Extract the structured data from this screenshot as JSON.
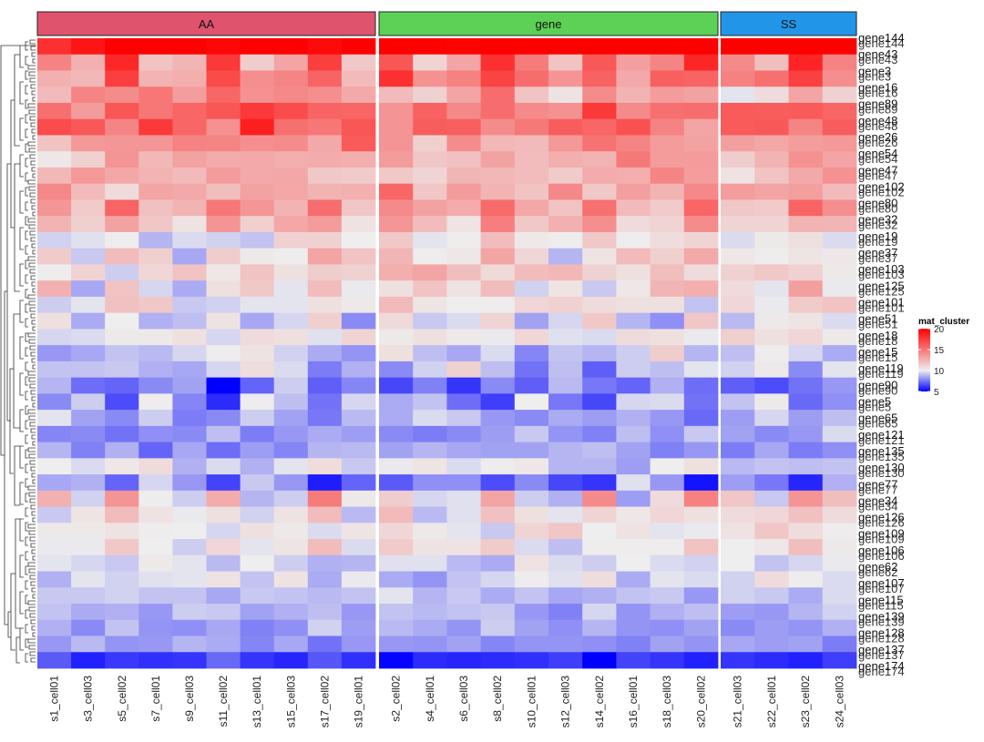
{
  "chart_data": {
    "type": "heatmap",
    "title": "",
    "legend": {
      "title": "mat_cluster",
      "ticks": [
        5,
        10,
        15,
        20
      ],
      "range": [
        5,
        20
      ],
      "placement": "right",
      "colors": {
        "low": "#0000ff",
        "mid": "#eeeeee",
        "high": "#ff0000"
      }
    },
    "row_dendrogram": true,
    "groups": [
      {
        "name": "AA",
        "color": "#e0536d",
        "columns": [
          "s1_cell01",
          "s3_cell03",
          "s5_cell02",
          "s7_cell01",
          "s9_cell03",
          "s11_cell02",
          "s13_cell01",
          "s15_cell03",
          "s17_cell02",
          "s19_cell01"
        ]
      },
      {
        "name": "gene",
        "color": "#5cd155",
        "columns": [
          "s2_cell02",
          "s4_cell01",
          "s6_cell03",
          "s8_cell02",
          "s10_cell01",
          "s12_cell03",
          "s14_cell02",
          "s16_cell01",
          "s18_cell03",
          "s20_cell02"
        ]
      },
      {
        "name": "SS",
        "color": "#2196e8",
        "columns": [
          "s21_cell03",
          "s22_cell01",
          "s23_cell02",
          "s24_cell03"
        ]
      }
    ],
    "row_labels_visible": [
      "gene144",
      "gene43",
      "gene3",
      "gene16",
      "gene89",
      "gene48",
      "gene26",
      "gene54",
      "gene47",
      "gene102",
      "gene80",
      "gene32",
      "gene19",
      "gene37",
      "gene103",
      "gene125",
      "gene101",
      "gene51",
      "gene18",
      "gene15",
      "gene119",
      "gene90",
      "gene5",
      "gene65",
      "gene121",
      "gene135",
      "gene130",
      "gene77",
      "gene34",
      "gene126",
      "gene109",
      "gene106",
      "gene62",
      "gene107",
      "gene115",
      "gene139",
      "gene128",
      "gene137",
      "gene174"
    ],
    "row_values": [
      [
        18.0,
        19.1,
        20.0,
        20.0,
        20.0,
        19.7,
        20.0,
        20.0,
        19.6,
        20.0,
        20.0,
        20.0,
        19.9,
        20.0,
        20.0,
        20.0,
        20.0,
        20.0,
        20.0,
        20.0,
        20.0,
        20.0,
        20.0,
        20.0
      ],
      [
        14.5,
        12.6,
        18.3,
        11.8,
        12.4,
        17.6,
        11.4,
        13.1,
        17.4,
        11.6,
        16.4,
        11.1,
        13.1,
        18.0,
        14.8,
        11.8,
        16.3,
        13.3,
        14.4,
        18.4,
        14.2,
        12.0,
        18.5,
        14.5
      ],
      [
        12.6,
        12.3,
        17.4,
        12.5,
        12.7,
        16.9,
        14.0,
        14.4,
        15.8,
        12.2,
        18.0,
        13.9,
        14.6,
        17.2,
        15.4,
        13.8,
        15.9,
        12.9,
        16.0,
        15.8,
        14.6,
        15.3,
        17.3,
        14.0
      ],
      [
        12.2,
        14.4,
        14.1,
        15.0,
        13.4,
        15.7,
        13.9,
        14.3,
        14.0,
        12.9,
        12.2,
        11.2,
        13.1,
        15.4,
        11.8,
        10.5,
        14.1,
        12.5,
        13.5,
        13.2,
        9.8,
        10.8,
        13.1,
        11.2
      ],
      [
        15.3,
        13.5,
        16.4,
        15.0,
        15.7,
        16.4,
        17.6,
        16.8,
        15.8,
        15.7,
        13.8,
        15.9,
        14.3,
        15.4,
        14.2,
        13.9,
        17.6,
        14.2,
        15.3,
        15.4,
        16.2,
        16.1,
        16.2,
        15.7
      ],
      [
        16.8,
        16.3,
        14.4,
        17.6,
        15.7,
        13.9,
        18.7,
        15.3,
        15.0,
        16.4,
        13.8,
        16.1,
        16.0,
        14.1,
        14.9,
        16.1,
        15.7,
        16.6,
        14.5,
        13.1,
        16.2,
        16.3,
        14.4,
        16.1
      ],
      [
        11.8,
        13.6,
        13.7,
        13.7,
        14.5,
        14.4,
        14.0,
        14.1,
        12.9,
        16.2,
        13.8,
        11.3,
        14.1,
        12.3,
        12.2,
        13.6,
        15.2,
        14.4,
        13.5,
        13.2,
        13.3,
        13.0,
        13.4,
        13.6
      ],
      [
        10.3,
        11.2,
        13.8,
        12.3,
        13.2,
        12.8,
        12.9,
        12.7,
        12.8,
        12.7,
        13.5,
        11.7,
        11.9,
        13.2,
        12.1,
        12.7,
        12.5,
        14.9,
        13.5,
        13.5,
        11.4,
        12.5,
        13.9,
        13.1
      ],
      [
        12.3,
        13.6,
        13.0,
        12.5,
        12.2,
        13.5,
        12.9,
        13.0,
        11.6,
        11.5,
        11.6,
        11.1,
        12.4,
        12.3,
        12.1,
        11.5,
        12.8,
        12.7,
        14.4,
        13.4,
        10.5,
        11.8,
        12.9,
        13.9
      ],
      [
        14.3,
        12.2,
        10.8,
        13.1,
        12.9,
        12.0,
        13.2,
        13.0,
        12.5,
        12.6,
        15.7,
        11.7,
        13.5,
        12.5,
        11.8,
        14.3,
        11.6,
        13.3,
        12.5,
        14.3,
        13.4,
        13.1,
        13.3,
        12.2
      ],
      [
        13.7,
        11.5,
        15.8,
        11.9,
        12.5,
        15.0,
        13.7,
        12.5,
        15.4,
        11.7,
        14.2,
        13.2,
        12.8,
        15.5,
        13.0,
        11.8,
        15.3,
        12.2,
        11.5,
        15.7,
        11.6,
        11.5,
        15.8,
        14.0
      ],
      [
        12.5,
        11.3,
        13.2,
        11.7,
        10.5,
        13.8,
        11.3,
        13.0,
        13.5,
        10.5,
        13.7,
        12.1,
        10.4,
        14.7,
        11.6,
        12.6,
        14.0,
        10.8,
        11.1,
        14.1,
        11.1,
        11.1,
        12.5,
        12.4
      ],
      [
        9.4,
        9.7,
        10.1,
        8.8,
        9.6,
        9.4,
        9.1,
        11.2,
        11.2,
        10.0,
        11.6,
        9.8,
        10.1,
        12.1,
        10.2,
        10.1,
        11.6,
        10.1,
        10.7,
        11.1,
        9.6,
        10.2,
        10.6,
        9.6
      ],
      [
        11.5,
        9.2,
        12.1,
        11.3,
        8.5,
        11.4,
        10.2,
        10.1,
        13.1,
        11.8,
        12.4,
        10.1,
        10.3,
        13.1,
        11.0,
        8.8,
        10.4,
        12.2,
        11.3,
        12.9,
        10.3,
        10.1,
        10.4,
        10.3
      ],
      [
        10.1,
        11.1,
        9.3,
        11.0,
        11.8,
        10.3,
        11.8,
        10.6,
        11.4,
        11.2,
        12.7,
        13.1,
        12.0,
        10.9,
        12.1,
        12.3,
        11.2,
        10.6,
        12.0,
        10.8,
        11.2,
        11.6,
        11.2,
        10.2
      ],
      [
        12.6,
        8.5,
        11.8,
        9.5,
        8.6,
        10.6,
        11.6,
        9.8,
        12.1,
        9.9,
        10.6,
        11.8,
        10.5,
        12.1,
        9.4,
        10.4,
        9.2,
        10.3,
        12.4,
        12.7,
        10.8,
        9.8,
        13.3,
        9.9
      ],
      [
        9.3,
        9.8,
        11.9,
        11.6,
        9.2,
        9.4,
        9.8,
        9.8,
        10.6,
        10.2,
        12.2,
        10.4,
        10.0,
        10.1,
        11.0,
        11.2,
        10.8,
        10.6,
        10.6,
        9.1,
        11.0,
        9.9,
        11.5,
        11.8
      ],
      [
        10.6,
        8.6,
        10.0,
        8.7,
        9.0,
        10.5,
        8.5,
        9.5,
        11.3,
        7.9,
        10.9,
        9.2,
        9.6,
        11.1,
        8.4,
        9.5,
        11.6,
        8.8,
        8.0,
        11.7,
        8.9,
        10.2,
        10.4,
        9.6
      ],
      [
        9.5,
        9.6,
        10.2,
        10.2,
        10.6,
        9.5,
        10.8,
        10.6,
        9.7,
        11.1,
        10.2,
        10.6,
        10.2,
        9.9,
        11.0,
        9.7,
        9.6,
        10.8,
        10.6,
        9.9,
        11.3,
        10.6,
        11.0,
        10.2
      ],
      [
        8.2,
        8.5,
        9.1,
        8.9,
        9.5,
        10.1,
        10.5,
        9.4,
        8.6,
        8.1,
        10.6,
        9.0,
        8.5,
        9.6,
        7.8,
        9.1,
        8.8,
        9.3,
        11.4,
        8.8,
        9.0,
        10.1,
        9.5,
        8.6
      ],
      [
        9.1,
        9.1,
        9.2,
        8.7,
        8.5,
        9.5,
        10.7,
        9.6,
        7.6,
        8.7,
        7.9,
        9.4,
        11.2,
        9.0,
        7.4,
        9.0,
        7.0,
        9.3,
        9.0,
        9.8,
        9.4,
        10.2,
        7.9,
        9.8
      ],
      [
        8.8,
        7.3,
        7.1,
        7.9,
        8.4,
        5.0,
        7.1,
        9.3,
        7.0,
        7.8,
        6.5,
        7.7,
        6.1,
        7.9,
        7.0,
        8.9,
        7.5,
        7.1,
        8.7,
        7.3,
        7.0,
        6.6,
        7.4,
        8.2
      ],
      [
        7.9,
        9.3,
        6.6,
        10.1,
        7.8,
        5.9,
        10.1,
        9.0,
        7.4,
        9.5,
        8.6,
        9.1,
        7.3,
        6.3,
        10.0,
        7.5,
        6.5,
        9.5,
        9.6,
        7.4,
        9.1,
        10.2,
        7.2,
        8.0
      ],
      [
        9.8,
        8.4,
        7.9,
        9.3,
        7.6,
        7.9,
        9.3,
        8.4,
        7.5,
        8.9,
        8.6,
        9.6,
        9.2,
        8.2,
        7.9,
        8.6,
        8.3,
        8.7,
        8.2,
        7.2,
        8.3,
        9.5,
        8.3,
        9.0
      ],
      [
        7.8,
        7.9,
        7.4,
        8.0,
        7.9,
        9.0,
        7.6,
        8.2,
        8.6,
        8.3,
        7.9,
        7.6,
        7.9,
        8.3,
        9.2,
        8.1,
        7.7,
        9.0,
        8.0,
        9.2,
        8.4,
        7.9,
        8.2,
        9.6
      ],
      [
        8.8,
        7.7,
        8.7,
        7.1,
        8.5,
        7.3,
        8.3,
        7.8,
        8.8,
        8.9,
        8.4,
        8.8,
        8.5,
        8.4,
        8.4,
        8.8,
        9.0,
        8.4,
        7.7,
        8.2,
        7.6,
        8.5,
        7.6,
        8.0
      ],
      [
        10.0,
        9.6,
        10.3,
        10.8,
        8.7,
        9.6,
        8.7,
        9.8,
        10.7,
        9.2,
        9.9,
        10.4,
        9.6,
        10.1,
        10.3,
        8.8,
        8.8,
        8.3,
        10.0,
        10.6,
        8.9,
        9.1,
        9.0,
        9.1
      ],
      [
        8.5,
        8.7,
        7.1,
        9.5,
        8.2,
        6.4,
        9.2,
        8.2,
        5.6,
        7.1,
        6.9,
        8.0,
        8.0,
        6.6,
        7.9,
        6.5,
        6.1,
        9.7,
        8.2,
        5.4,
        8.3,
        7.5,
        5.8,
        8.7
      ],
      [
        12.6,
        9.4,
        13.8,
        10.1,
        9.3,
        12.8,
        8.8,
        9.3,
        14.8,
        10.2,
        11.4,
        9.5,
        9.7,
        13.1,
        9.3,
        8.7,
        14.2,
        8.3,
        10.8,
        14.6,
        11.7,
        9.2,
        13.8,
        12.0
      ],
      [
        9.2,
        10.4,
        12.1,
        10.5,
        9.9,
        10.6,
        9.4,
        10.5,
        12.1,
        8.9,
        12.2,
        8.9,
        9.7,
        11.9,
        10.6,
        9.8,
        11.1,
        10.3,
        11.0,
        10.6,
        10.8,
        11.0,
        11.9,
        10.8
      ],
      [
        10.2,
        10.2,
        10.5,
        10.1,
        10.0,
        9.5,
        10.6,
        10.2,
        9.6,
        10.4,
        11.0,
        10.2,
        9.8,
        9.2,
        11.1,
        11.7,
        10.0,
        10.5,
        9.8,
        9.9,
        10.5,
        11.7,
        10.7,
        10.1
      ],
      [
        9.9,
        9.9,
        11.6,
        10.0,
        9.3,
        11.0,
        9.8,
        10.4,
        12.1,
        9.6,
        11.5,
        10.5,
        10.5,
        11.5,
        9.6,
        9.0,
        10.1,
        10.1,
        10.1,
        11.8,
        10.0,
        10.3,
        12.0,
        10.2
      ],
      [
        9.8,
        9.5,
        9.2,
        10.2,
        9.8,
        8.9,
        10.0,
        9.3,
        8.7,
        8.8,
        9.7,
        9.7,
        8.9,
        8.6,
        10.5,
        9.6,
        9.3,
        10.0,
        9.6,
        9.4,
        10.0,
        9.1,
        9.5,
        9.9
      ],
      [
        8.7,
        9.8,
        9.4,
        9.7,
        9.8,
        10.5,
        9.1,
        10.5,
        8.6,
        9.9,
        8.6,
        8.1,
        9.1,
        9.5,
        10.1,
        9.7,
        10.7,
        8.6,
        9.8,
        9.6,
        9.4,
        10.8,
        10.1,
        9.6
      ],
      [
        9.2,
        9.2,
        9.4,
        9.1,
        9.1,
        8.5,
        9.2,
        9.1,
        8.9,
        9.1,
        9.8,
        8.8,
        9.2,
        8.6,
        9.1,
        8.5,
        8.7,
        9.1,
        9.2,
        8.2,
        9.4,
        9.2,
        8.6,
        9.6
      ],
      [
        9.1,
        8.6,
        8.7,
        8.2,
        9.3,
        9.2,
        8.4,
        8.7,
        9.0,
        8.2,
        9.1,
        8.9,
        9.1,
        9.2,
        8.2,
        7.7,
        9.5,
        8.1,
        8.7,
        9.0,
        8.3,
        8.2,
        8.8,
        9.4
      ],
      [
        8.7,
        7.9,
        9.1,
        8.1,
        8.0,
        8.5,
        7.7,
        8.0,
        9.4,
        8.3,
        8.9,
        8.6,
        8.1,
        9.3,
        8.4,
        8.0,
        8.8,
        8.1,
        8.0,
        8.4,
        7.9,
        8.3,
        8.1,
        8.7
      ],
      [
        8.2,
        8.9,
        8.1,
        8.2,
        8.8,
        8.6,
        7.8,
        8.5,
        7.4,
        8.2,
        8.2,
        8.1,
        8.4,
        7.8,
        8.1,
        8.1,
        8.0,
        7.7,
        8.4,
        8.1,
        8.5,
        8.3,
        8.4,
        7.6
      ],
      [
        6.9,
        5.7,
        6.2,
        6.0,
        6.1,
        7.2,
        6.1,
        5.8,
        6.8,
        6.0,
        5.1,
        5.9,
        5.8,
        5.9,
        6.0,
        6.3,
        5.0,
        6.4,
        6.1,
        5.7,
        6.1,
        5.9,
        5.7,
        6.3
      ]
    ]
  }
}
